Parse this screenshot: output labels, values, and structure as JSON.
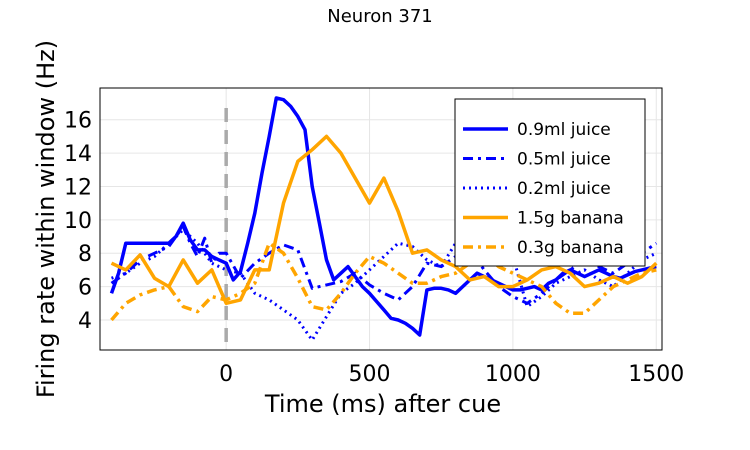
{
  "chart_data": {
    "type": "line",
    "title": "Neuron 371",
    "xlabel": "Time (ms) after cue",
    "ylabel": "Firing rate within window (Hz)",
    "xlim": [
      -440,
      1520
    ],
    "ylim": [
      2.2,
      17.9
    ],
    "xticks": [
      0,
      500,
      1000,
      1500
    ],
    "yticks": [
      4,
      6,
      8,
      10,
      12,
      14,
      16
    ],
    "grid": true,
    "legend_position": "top-right",
    "cue_line_x": 0,
    "series": [
      {
        "name": "0.9ml juice",
        "color": "#0000ff",
        "dash": "solid",
        "width": 3.5,
        "x": [
          -400,
          -375,
          -350,
          -325,
          -300,
          -275,
          -250,
          -225,
          -200,
          -175,
          -150,
          -125,
          -100,
          -75,
          -50,
          -25,
          0,
          25,
          50,
          75,
          100,
          125,
          150,
          175,
          200,
          225,
          250,
          275,
          300,
          325,
          350,
          375,
          400,
          425,
          450,
          475,
          500,
          525,
          550,
          575,
          600,
          625,
          650,
          675,
          700,
          725,
          750,
          775,
          800,
          825,
          850,
          875,
          900,
          925,
          950,
          975,
          1000,
          1025,
          1050,
          1075,
          1100,
          1125,
          1150,
          1175,
          1200,
          1225,
          1250,
          1275,
          1300,
          1325,
          1350,
          1375,
          1400,
          1425,
          1450,
          1475,
          1500
        ],
        "y": [
          5.6,
          6.8,
          8.6,
          8.6,
          8.6,
          8.6,
          8.6,
          8.6,
          8.6,
          9.0,
          9.8,
          8.8,
          8.2,
          8.2,
          7.8,
          7.6,
          7.4,
          6.4,
          6.9,
          8.6,
          10.4,
          12.8,
          15.0,
          17.3,
          17.2,
          16.8,
          16.2,
          15.4,
          12.0,
          9.8,
          7.6,
          6.4,
          6.8,
          7.2,
          6.6,
          6.0,
          5.6,
          5.1,
          4.6,
          4.1,
          4.0,
          3.8,
          3.5,
          3.1,
          5.8,
          5.9,
          5.9,
          5.8,
          5.6,
          6.0,
          6.4,
          6.8,
          6.6,
          6.4,
          6.2,
          6.0,
          5.8,
          5.8,
          5.9,
          6.0,
          5.8,
          6.2,
          6.4,
          6.8,
          7.0,
          6.8,
          6.6,
          6.8,
          7.0,
          6.8,
          6.6,
          6.5,
          6.7,
          6.9,
          7.0,
          7.1,
          7.2
        ]
      },
      {
        "name": "0.5ml juice",
        "color": "#0000ff",
        "dash": "dashdot",
        "width": 3,
        "x": [
          -400,
          -350,
          -300,
          -250,
          -200,
          -150,
          -125,
          -100,
          -75,
          -50,
          -25,
          0,
          50,
          100,
          150,
          200,
          250,
          300,
          350,
          400,
          450,
          500,
          550,
          600,
          650,
          700,
          750,
          800,
          850,
          900,
          950,
          1000,
          1050,
          1100,
          1150,
          1200,
          1250,
          1300,
          1350,
          1400,
          1450,
          1500
        ],
        "y": [
          6.2,
          6.8,
          7.6,
          8.0,
          8.4,
          9.6,
          8.6,
          7.8,
          8.9,
          7.4,
          8.0,
          8.0,
          6.5,
          7.4,
          8.0,
          8.5,
          8.2,
          5.9,
          6.1,
          6.3,
          6.8,
          6.1,
          5.6,
          5.2,
          6.0,
          7.4,
          7.2,
          7.8,
          8.2,
          7.0,
          6.0,
          5.4,
          5.0,
          5.6,
          6.4,
          7.0,
          7.6,
          7.2,
          6.8,
          7.4,
          8.0,
          8.6
        ]
      },
      {
        "name": "0.2ml juice",
        "color": "#0000ff",
        "dash": "dotted",
        "width": 3,
        "x": [
          -400,
          -350,
          -300,
          -250,
          -200,
          -150,
          -100,
          -50,
          0,
          50,
          100,
          150,
          200,
          250,
          300,
          350,
          400,
          450,
          500,
          550,
          600,
          650,
          700,
          750,
          800,
          850,
          900,
          950,
          1000,
          1050,
          1100,
          1150,
          1200,
          1250,
          1300,
          1350,
          1400,
          1450,
          1500
        ],
        "y": [
          6.5,
          6.8,
          7.4,
          7.8,
          8.6,
          9.4,
          8.6,
          7.4,
          7.0,
          6.8,
          5.6,
          5.2,
          4.6,
          4.0,
          2.8,
          4.2,
          5.6,
          6.2,
          7.0,
          7.8,
          8.6,
          8.4,
          7.6,
          7.2,
          8.6,
          9.6,
          9.0,
          8.4,
          7.8,
          4.8,
          5.4,
          6.2,
          6.6,
          7.0,
          6.4,
          6.0,
          6.8,
          7.6,
          8.0
        ]
      },
      {
        "name": "1.5g banana",
        "color": "#ffa500",
        "dash": "solid",
        "width": 3.5,
        "x": [
          -400,
          -350,
          -300,
          -250,
          -200,
          -150,
          -100,
          -50,
          0,
          50,
          100,
          150,
          200,
          250,
          300,
          350,
          400,
          450,
          500,
          550,
          600,
          650,
          700,
          750,
          800,
          850,
          900,
          950,
          1000,
          1050,
          1100,
          1150,
          1200,
          1250,
          1300,
          1350,
          1400,
          1450,
          1500
        ],
        "y": [
          7.4,
          7.0,
          7.9,
          6.5,
          6.0,
          7.6,
          6.2,
          7.0,
          5.0,
          5.2,
          7.0,
          7.0,
          11.0,
          13.5,
          14.2,
          15.0,
          14.0,
          12.5,
          11.0,
          12.5,
          10.5,
          8.0,
          8.2,
          7.6,
          7.2,
          6.4,
          6.6,
          6.0,
          6.0,
          6.4,
          7.0,
          7.2,
          6.8,
          6.0,
          6.2,
          6.6,
          6.2,
          6.6,
          7.4
        ]
      },
      {
        "name": "0.3g banana",
        "color": "#ffa500",
        "dash": "dashdot",
        "width": 3.5,
        "x": [
          -400,
          -350,
          -300,
          -250,
          -200,
          -150,
          -100,
          -50,
          0,
          50,
          100,
          150,
          200,
          250,
          300,
          350,
          400,
          450,
          500,
          550,
          600,
          650,
          700,
          750,
          800,
          850,
          900,
          950,
          1000,
          1050,
          1100,
          1150,
          1200,
          1250,
          1300,
          1350,
          1400,
          1450,
          1500
        ],
        "y": [
          4.0,
          5.0,
          5.5,
          5.8,
          6.0,
          4.8,
          4.5,
          5.4,
          5.2,
          5.6,
          6.2,
          8.6,
          8.0,
          6.5,
          4.8,
          4.6,
          5.6,
          6.8,
          7.8,
          7.4,
          6.8,
          6.2,
          6.2,
          6.6,
          6.8,
          7.4,
          8.0,
          7.2,
          6.8,
          6.4,
          6.0,
          5.0,
          4.4,
          4.4,
          5.2,
          6.0,
          6.4,
          6.8,
          7.0
        ]
      }
    ]
  }
}
